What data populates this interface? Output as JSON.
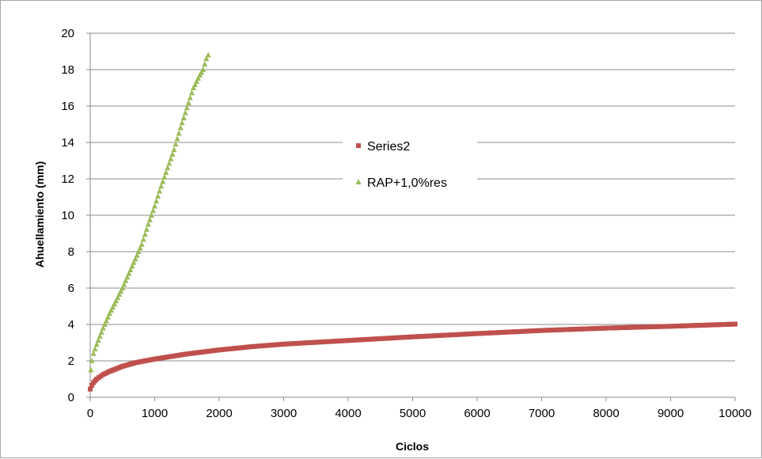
{
  "chart_data": {
    "type": "scatter",
    "title": "",
    "xlabel": "Ciclos",
    "ylabel": "Ahuellamiento (mm)",
    "xlim": [
      0,
      10000
    ],
    "ylim": [
      0,
      20
    ],
    "xticks": [
      "0",
      "1000",
      "2000",
      "3000",
      "4000",
      "5000",
      "6000",
      "7000",
      "8000",
      "9000",
      "10000"
    ],
    "yticks": [
      "0",
      "2",
      "4",
      "6",
      "8",
      "10",
      "12",
      "14",
      "16",
      "18",
      "20"
    ],
    "grid": "horizontal",
    "legend_position": "center",
    "series": [
      {
        "name": "Series2",
        "marker": "square",
        "color": "#c0504d",
        "x": [
          0,
          25,
          50,
          100,
          200,
          300,
          500,
          700,
          1000,
          1500,
          2000,
          2500,
          3000,
          4000,
          5000,
          6000,
          7000,
          8000,
          9000,
          10000
        ],
        "y": [
          0.45,
          0.65,
          0.8,
          1.0,
          1.25,
          1.42,
          1.7,
          1.9,
          2.1,
          2.38,
          2.6,
          2.78,
          2.92,
          3.12,
          3.32,
          3.5,
          3.67,
          3.8,
          3.9,
          4.02
        ]
      },
      {
        "name": "RAP+1,0%res",
        "marker": "triangle",
        "color": "#9bbb59",
        "x": [
          10,
          25,
          50,
          100,
          200,
          300,
          400,
          500,
          600,
          700,
          800,
          900,
          1000,
          1100,
          1200,
          1300,
          1400,
          1500,
          1600,
          1700,
          1750,
          1800,
          1830
        ],
        "y": [
          1.5,
          2.0,
          2.4,
          2.9,
          3.8,
          4.6,
          5.3,
          6.0,
          6.8,
          7.6,
          8.4,
          9.5,
          10.5,
          11.6,
          12.6,
          13.6,
          14.8,
          15.9,
          17.0,
          17.7,
          18.0,
          18.6,
          18.8
        ]
      }
    ]
  }
}
